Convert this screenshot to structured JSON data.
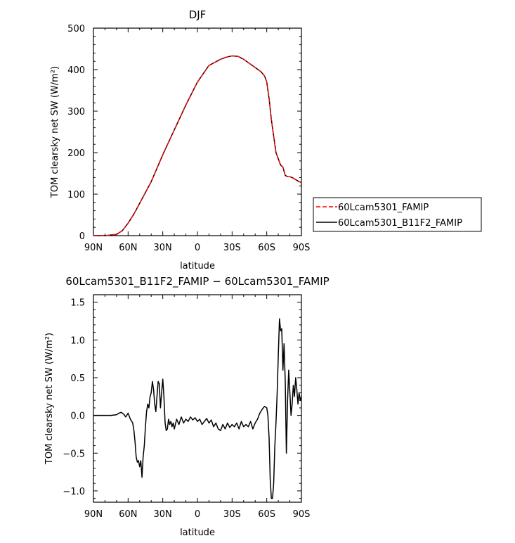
{
  "chart_data": [
    {
      "type": "line",
      "title": "DJF",
      "xlabel": "latitude",
      "ylabel": "TOM clearsky net SW (W/m²)",
      "xlim": [
        -90,
        90
      ],
      "ylim": [
        0,
        500
      ],
      "xticks": [
        -90,
        -60,
        -30,
        0,
        30,
        60,
        90
      ],
      "xtick_labels": [
        "90N",
        "60N",
        "30N",
        "0",
        "30S",
        "60S",
        "90S"
      ],
      "yticks": [
        0,
        100,
        200,
        300,
        400,
        500
      ],
      "ytick_labels": [
        "0",
        "100",
        "200",
        "300",
        "400",
        "500"
      ],
      "legend_position": "right",
      "series": [
        {
          "name": "60Lcam5301_FAMIP",
          "color": "#ff0000",
          "dash": "dashed",
          "x": [
            -90,
            -80,
            -70,
            -65,
            -60,
            -55,
            -50,
            -40,
            -30,
            -20,
            -10,
            0,
            10,
            20,
            25,
            30,
            35,
            40,
            45,
            50,
            55,
            58,
            60,
            62,
            64,
            66,
            68,
            70,
            72,
            74,
            76,
            78,
            80,
            82,
            85,
            88,
            90
          ],
          "y": [
            0,
            0,
            3,
            12,
            30,
            52,
            78,
            130,
            195,
            255,
            315,
            370,
            410,
            425,
            430,
            433,
            432,
            425,
            415,
            405,
            395,
            385,
            370,
            330,
            280,
            240,
            200,
            185,
            170,
            165,
            145,
            142,
            142,
            140,
            135,
            130,
            128
          ]
        },
        {
          "name": "60Lcam5301_B11F2_FAMIP",
          "color": "#000000",
          "dash": "solid",
          "x": [
            -90,
            -80,
            -70,
            -65,
            -60,
            -55,
            -50,
            -40,
            -30,
            -20,
            -10,
            0,
            10,
            20,
            25,
            30,
            35,
            40,
            45,
            50,
            55,
            58,
            60,
            62,
            64,
            66,
            68,
            70,
            72,
            74,
            76,
            78,
            80,
            82,
            85,
            88,
            90
          ],
          "y": [
            0,
            0,
            3,
            12,
            30,
            52,
            78,
            130,
            195,
            255,
            315,
            370,
            410,
            425,
            430,
            433,
            432,
            425,
            415,
            405,
            395,
            385,
            370,
            330,
            280,
            240,
            200,
            185,
            170,
            165,
            145,
            142,
            142,
            140,
            135,
            130,
            128
          ]
        }
      ]
    },
    {
      "type": "line",
      "title": "60Lcam5301_B11F2_FAMIP − 60Lcam5301_FAMIP",
      "xlabel": "latitude",
      "ylabel": "TOM clearsky net SW (W/m²)",
      "xlim": [
        -90,
        90
      ],
      "ylim": [
        -1.15,
        1.6
      ],
      "xticks": [
        -90,
        -60,
        -30,
        0,
        30,
        60,
        90
      ],
      "xtick_labels": [
        "90N",
        "60N",
        "30N",
        "0",
        "30S",
        "60S",
        "90S"
      ],
      "yticks": [
        -1.0,
        -0.5,
        0.0,
        0.5,
        1.0,
        1.5
      ],
      "ytick_labels": [
        "−1.0",
        "−0.5",
        "0.0",
        "0.5",
        "1.0",
        "1.5"
      ],
      "series": [
        {
          "color": "#000000",
          "dash": "solid",
          "x": [
            -90,
            -75,
            -70,
            -68,
            -66,
            -64,
            -62,
            -60,
            -58,
            -56,
            -55,
            -54,
            -53,
            -52,
            -51,
            -50,
            -49,
            -48,
            -47,
            -46,
            -45,
            -44,
            -43,
            -42,
            -41,
            -40,
            -39,
            -38,
            -37,
            -36,
            -35,
            -34,
            -33,
            -32,
            -31,
            -30,
            -29,
            -28,
            -27,
            -26,
            -25,
            -24,
            -23,
            -22,
            -21,
            -20,
            -18,
            -16,
            -14,
            -12,
            -10,
            -8,
            -6,
            -4,
            -2,
            0,
            2,
            4,
            6,
            8,
            10,
            12,
            14,
            16,
            18,
            20,
            22,
            24,
            26,
            28,
            30,
            32,
            34,
            36,
            38,
            40,
            42,
            44,
            46,
            48,
            50,
            52,
            54,
            56,
            58,
            60,
            61,
            62,
            63,
            64,
            65,
            66,
            67,
            68,
            69,
            70,
            71,
            72,
            73,
            74,
            75,
            76,
            77,
            78,
            79,
            80,
            81,
            82,
            83,
            84,
            85,
            86,
            87,
            88,
            89,
            90
          ],
          "y": [
            0.0,
            0.0,
            0.01,
            0.03,
            0.04,
            0.02,
            -0.02,
            0.03,
            -0.05,
            -0.1,
            -0.2,
            -0.35,
            -0.55,
            -0.62,
            -0.6,
            -0.68,
            -0.6,
            -0.82,
            -0.55,
            -0.4,
            -0.15,
            0.05,
            0.15,
            0.1,
            0.25,
            0.3,
            0.45,
            0.35,
            0.15,
            0.05,
            0.25,
            0.45,
            0.42,
            0.1,
            0.3,
            0.48,
            0.25,
            -0.1,
            -0.2,
            -0.18,
            -0.05,
            -0.12,
            -0.08,
            -0.15,
            -0.1,
            -0.18,
            -0.05,
            -0.12,
            -0.02,
            -0.1,
            -0.05,
            -0.08,
            -0.02,
            -0.06,
            -0.03,
            -0.08,
            -0.05,
            -0.12,
            -0.08,
            -0.04,
            -0.1,
            -0.06,
            -0.15,
            -0.1,
            -0.18,
            -0.2,
            -0.12,
            -0.18,
            -0.1,
            -0.16,
            -0.12,
            -0.15,
            -0.1,
            -0.18,
            -0.08,
            -0.15,
            -0.12,
            -0.15,
            -0.08,
            -0.18,
            -0.1,
            -0.05,
            0.03,
            0.08,
            0.12,
            0.1,
            0.0,
            -0.3,
            -0.85,
            -1.1,
            -1.1,
            -0.9,
            -0.4,
            -0.1,
            0.3,
            0.8,
            1.28,
            1.12,
            1.15,
            0.6,
            0.95,
            0.45,
            -0.5,
            0.2,
            0.6,
            0.3,
            0.0,
            0.15,
            0.4,
            0.25,
            0.5,
            0.35,
            0.15,
            0.3,
            0.2,
            0.25
          ]
        }
      ]
    }
  ]
}
